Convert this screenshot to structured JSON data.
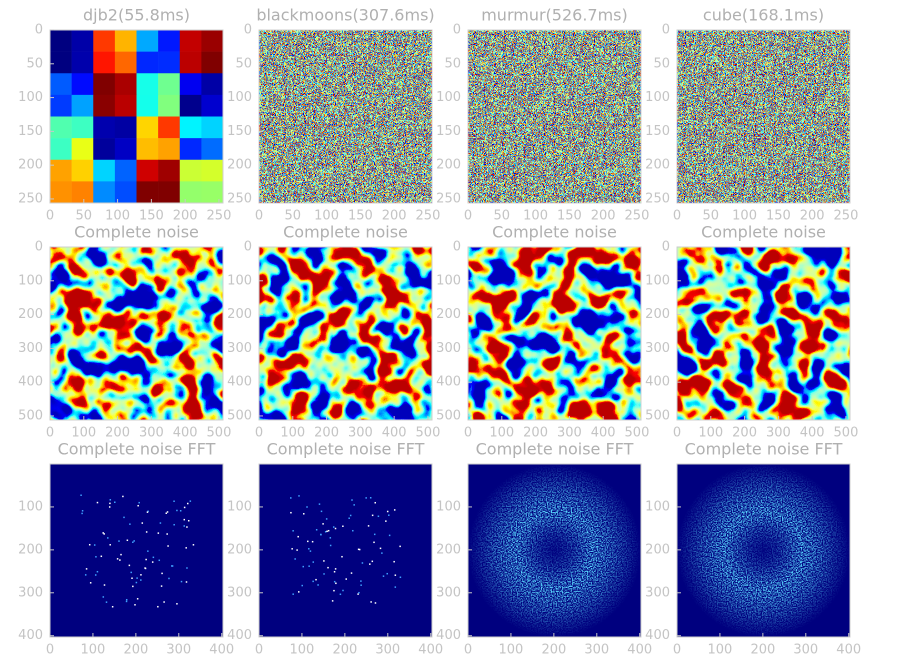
{
  "chart_data": [
    {
      "type": "heatmap",
      "title": "djb2(55.8ms)",
      "xlim": [
        0,
        256
      ],
      "ylim": [
        256,
        0
      ],
      "xticks": [
        0,
        50,
        100,
        150,
        200,
        250
      ],
      "yticks": [
        0,
        50,
        100,
        150,
        200,
        250
      ]
    },
    {
      "type": "heatmap",
      "title": "blackmoons(307.6ms)",
      "xlim": [
        0,
        256
      ],
      "ylim": [
        256,
        0
      ],
      "xticks": [
        0,
        50,
        100,
        150,
        200,
        250
      ],
      "yticks": [
        0,
        50,
        100,
        150,
        200,
        250
      ]
    },
    {
      "type": "heatmap",
      "title": "murmur(526.7ms)",
      "xlim": [
        0,
        256
      ],
      "ylim": [
        256,
        0
      ],
      "xticks": [
        0,
        50,
        100,
        150,
        200,
        250
      ],
      "yticks": [
        0,
        50,
        100,
        150,
        200,
        250
      ]
    },
    {
      "type": "heatmap",
      "title": "cube(168.1ms)",
      "xlim": [
        0,
        256
      ],
      "ylim": [
        256,
        0
      ],
      "xticks": [
        0,
        50,
        100,
        150,
        200,
        250
      ],
      "yticks": [
        0,
        50,
        100,
        150,
        200,
        250
      ]
    },
    {
      "type": "heatmap",
      "title": "Complete noise",
      "xlim": [
        0,
        512
      ],
      "ylim": [
        512,
        0
      ],
      "xticks": [
        0,
        100,
        200,
        300,
        400,
        500
      ],
      "yticks": [
        0,
        100,
        200,
        300,
        400,
        500
      ]
    },
    {
      "type": "heatmap",
      "title": "Complete noise",
      "xlim": [
        0,
        512
      ],
      "ylim": [
        512,
        0
      ],
      "xticks": [
        0,
        100,
        200,
        300,
        400,
        500
      ],
      "yticks": [
        0,
        100,
        200,
        300,
        400,
        500
      ]
    },
    {
      "type": "heatmap",
      "title": "Complete noise",
      "xlim": [
        0,
        512
      ],
      "ylim": [
        512,
        0
      ],
      "xticks": [
        0,
        100,
        200,
        300,
        400,
        500
      ],
      "yticks": [
        0,
        100,
        200,
        300,
        400,
        500
      ]
    },
    {
      "type": "heatmap",
      "title": "Complete noise",
      "xlim": [
        0,
        512
      ],
      "ylim": [
        512,
        0
      ],
      "xticks": [
        0,
        100,
        200,
        300,
        400,
        500
      ],
      "yticks": [
        0,
        100,
        200,
        300,
        400,
        500
      ]
    },
    {
      "type": "spectrum",
      "title": "Complete noise FFT",
      "xlim": [
        0,
        403
      ],
      "ylim": [
        403,
        0
      ],
      "xticks": [
        0,
        100,
        200,
        300,
        400
      ],
      "yticks": [
        100,
        200,
        300,
        400
      ]
    },
    {
      "type": "spectrum",
      "title": "Complete noise FFT",
      "xlim": [
        0,
        403
      ],
      "ylim": [
        403,
        0
      ],
      "xticks": [
        0,
        100,
        200,
        300,
        400
      ],
      "yticks": [
        100,
        200,
        300,
        400
      ]
    },
    {
      "type": "spectrum-ring",
      "title": "Complete noise FFT",
      "xlim": [
        0,
        403
      ],
      "ylim": [
        403,
        0
      ],
      "xticks": [
        0,
        100,
        200,
        300,
        400
      ],
      "yticks": [
        100,
        200,
        300,
        400
      ]
    },
    {
      "type": "spectrum-ring",
      "title": "Complete noise FFT",
      "xlim": [
        0,
        403
      ],
      "ylim": [
        403,
        0
      ],
      "xticks": [
        0,
        100,
        200,
        300,
        400
      ],
      "yticks": [
        100,
        200,
        300,
        400
      ]
    }
  ]
}
